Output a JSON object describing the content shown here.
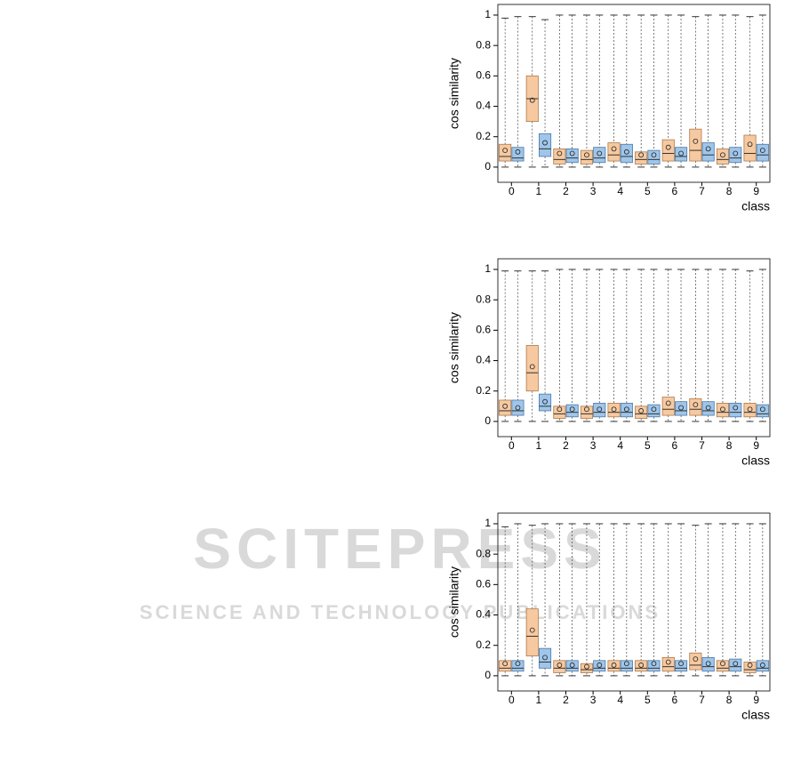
{
  "watermark": {
    "title": "SCITEPRESS",
    "subtitle": "SCIENCE AND TECHNOLOGY PUBLICATIONS"
  },
  "chart_data": [
    {
      "type": "box",
      "ylabel": "cos similarity",
      "xlabel": "class",
      "categories": [
        "0",
        "1",
        "2",
        "3",
        "4",
        "5",
        "6",
        "7",
        "8",
        "9"
      ],
      "ylim": [
        -0.1,
        1.07
      ],
      "yticks": [
        0,
        0.2,
        0.4,
        0.6,
        0.8,
        1
      ],
      "series": [
        {
          "color": "#f6c9a0",
          "stroke": "#b07a4a",
          "boxes": [
            {
              "min": 0,
              "q1": 0.04,
              "median": 0.07,
              "q3": 0.15,
              "max": 0.98,
              "mean": 0.11
            },
            {
              "min": 0,
              "q1": 0.3,
              "median": 0.45,
              "q3": 0.6,
              "max": 0.99,
              "mean": 0.44
            },
            {
              "min": 0,
              "q1": 0.02,
              "median": 0.05,
              "q3": 0.12,
              "max": 1,
              "mean": 0.09
            },
            {
              "min": 0,
              "q1": 0.02,
              "median": 0.05,
              "q3": 0.11,
              "max": 1,
              "mean": 0.08
            },
            {
              "min": 0,
              "q1": 0.04,
              "median": 0.08,
              "q3": 0.16,
              "max": 1,
              "mean": 0.12
            },
            {
              "min": 0,
              "q1": 0.02,
              "median": 0.05,
              "q3": 0.1,
              "max": 1,
              "mean": 0.08
            },
            {
              "min": 0,
              "q1": 0.04,
              "median": 0.09,
              "q3": 0.18,
              "max": 1,
              "mean": 0.13
            },
            {
              "min": 0,
              "q1": 0.04,
              "median": 0.11,
              "q3": 0.25,
              "max": 0.99,
              "mean": 0.17
            },
            {
              "min": 0,
              "q1": 0.02,
              "median": 0.05,
              "q3": 0.12,
              "max": 1,
              "mean": 0.08
            },
            {
              "min": 0,
              "q1": 0.04,
              "median": 0.09,
              "q3": 0.21,
              "max": 0.99,
              "mean": 0.15
            }
          ]
        },
        {
          "color": "#9fc6ea",
          "stroke": "#4a78a8",
          "boxes": [
            {
              "min": 0,
              "q1": 0.04,
              "median": 0.06,
              "q3": 0.13,
              "max": 0.99,
              "mean": 0.1
            },
            {
              "min": 0,
              "q1": 0.07,
              "median": 0.12,
              "q3": 0.22,
              "max": 0.97,
              "mean": 0.16
            },
            {
              "min": 0,
              "q1": 0.03,
              "median": 0.06,
              "q3": 0.12,
              "max": 1,
              "mean": 0.09
            },
            {
              "min": 0,
              "q1": 0.03,
              "median": 0.06,
              "q3": 0.13,
              "max": 1,
              "mean": 0.09
            },
            {
              "min": 0,
              "q1": 0.03,
              "median": 0.07,
              "q3": 0.15,
              "max": 1,
              "mean": 0.1
            },
            {
              "min": 0,
              "q1": 0.02,
              "median": 0.05,
              "q3": 0.11,
              "max": 1,
              "mean": 0.08
            },
            {
              "min": 0,
              "q1": 0.04,
              "median": 0.07,
              "q3": 0.13,
              "max": 1,
              "mean": 0.09
            },
            {
              "min": 0,
              "q1": 0.04,
              "median": 0.08,
              "q3": 0.16,
              "max": 1,
              "mean": 0.12
            },
            {
              "min": 0,
              "q1": 0.03,
              "median": 0.06,
              "q3": 0.13,
              "max": 1,
              "mean": 0.09
            },
            {
              "min": 0,
              "q1": 0.04,
              "median": 0.08,
              "q3": 0.15,
              "max": 1,
              "mean": 0.11
            }
          ]
        }
      ]
    },
    {
      "type": "box",
      "ylabel": "cos similarity",
      "xlabel": "class",
      "categories": [
        "0",
        "1",
        "2",
        "3",
        "4",
        "5",
        "6",
        "7",
        "8",
        "9"
      ],
      "ylim": [
        -0.1,
        1.07
      ],
      "yticks": [
        0,
        0.2,
        0.4,
        0.6,
        0.8,
        1
      ],
      "series": [
        {
          "color": "#f6c9a0",
          "stroke": "#b07a4a",
          "boxes": [
            {
              "min": 0,
              "q1": 0.04,
              "median": 0.07,
              "q3": 0.14,
              "max": 0.99,
              "mean": 0.1
            },
            {
              "min": 0,
              "q1": 0.2,
              "median": 0.32,
              "q3": 0.5,
              "max": 0.99,
              "mean": 0.36
            },
            {
              "min": 0,
              "q1": 0.02,
              "median": 0.05,
              "q3": 0.1,
              "max": 1,
              "mean": 0.08
            },
            {
              "min": 0,
              "q1": 0.02,
              "median": 0.05,
              "q3": 0.1,
              "max": 1,
              "mean": 0.08
            },
            {
              "min": 0,
              "q1": 0.03,
              "median": 0.06,
              "q3": 0.12,
              "max": 1,
              "mean": 0.08
            },
            {
              "min": 0,
              "q1": 0.02,
              "median": 0.05,
              "q3": 0.1,
              "max": 1,
              "mean": 0.07
            },
            {
              "min": 0,
              "q1": 0.04,
              "median": 0.08,
              "q3": 0.16,
              "max": 1,
              "mean": 0.12
            },
            {
              "min": 0,
              "q1": 0.04,
              "median": 0.08,
              "q3": 0.15,
              "max": 1,
              "mean": 0.11
            },
            {
              "min": 0,
              "q1": 0.03,
              "median": 0.06,
              "q3": 0.12,
              "max": 1,
              "mean": 0.08
            },
            {
              "min": 0,
              "q1": 0.03,
              "median": 0.06,
              "q3": 0.12,
              "max": 0.99,
              "mean": 0.08
            }
          ]
        },
        {
          "color": "#9fc6ea",
          "stroke": "#4a78a8",
          "boxes": [
            {
              "min": 0,
              "q1": 0.04,
              "median": 0.07,
              "q3": 0.14,
              "max": 0.99,
              "mean": 0.09
            },
            {
              "min": 0,
              "q1": 0.07,
              "median": 0.1,
              "q3": 0.18,
              "max": 0.99,
              "mean": 0.13
            },
            {
              "min": 0,
              "q1": 0.03,
              "median": 0.06,
              "q3": 0.11,
              "max": 1,
              "mean": 0.08
            },
            {
              "min": 0,
              "q1": 0.03,
              "median": 0.06,
              "q3": 0.12,
              "max": 1,
              "mean": 0.08
            },
            {
              "min": 0,
              "q1": 0.03,
              "median": 0.06,
              "q3": 0.12,
              "max": 1,
              "mean": 0.08
            },
            {
              "min": 0,
              "q1": 0.03,
              "median": 0.05,
              "q3": 0.11,
              "max": 1,
              "mean": 0.08
            },
            {
              "min": 0,
              "q1": 0.04,
              "median": 0.07,
              "q3": 0.13,
              "max": 1,
              "mean": 0.09
            },
            {
              "min": 0,
              "q1": 0.04,
              "median": 0.07,
              "q3": 0.13,
              "max": 1,
              "mean": 0.09
            },
            {
              "min": 0,
              "q1": 0.03,
              "median": 0.06,
              "q3": 0.12,
              "max": 1,
              "mean": 0.09
            },
            {
              "min": 0,
              "q1": 0.03,
              "median": 0.05,
              "q3": 0.11,
              "max": 1,
              "mean": 0.08
            }
          ]
        }
      ]
    },
    {
      "type": "box",
      "ylabel": "cos similarity",
      "xlabel": "class",
      "categories": [
        "0",
        "1",
        "2",
        "3",
        "4",
        "5",
        "6",
        "7",
        "8",
        "9"
      ],
      "ylim": [
        -0.1,
        1.07
      ],
      "yticks": [
        0,
        0.2,
        0.4,
        0.6,
        0.8,
        1
      ],
      "series": [
        {
          "color": "#f6c9a0",
          "stroke": "#b07a4a",
          "boxes": [
            {
              "min": 0,
              "q1": 0.03,
              "median": 0.05,
              "q3": 0.1,
              "max": 0.98,
              "mean": 0.08
            },
            {
              "min": 0,
              "q1": 0.13,
              "median": 0.26,
              "q3": 0.44,
              "max": 0.99,
              "mean": 0.3
            },
            {
              "min": 0,
              "q1": 0.02,
              "median": 0.05,
              "q3": 0.1,
              "max": 1,
              "mean": 0.07
            },
            {
              "min": 0,
              "q1": 0.02,
              "median": 0.04,
              "q3": 0.08,
              "max": 1,
              "mean": 0.06
            },
            {
              "min": 0,
              "q1": 0.03,
              "median": 0.05,
              "q3": 0.1,
              "max": 1,
              "mean": 0.07
            },
            {
              "min": 0,
              "q1": 0.03,
              "median": 0.05,
              "q3": 0.1,
              "max": 1,
              "mean": 0.07
            },
            {
              "min": 0,
              "q1": 0.03,
              "median": 0.06,
              "q3": 0.12,
              "max": 1,
              "mean": 0.09
            },
            {
              "min": 0,
              "q1": 0.04,
              "median": 0.07,
              "q3": 0.15,
              "max": 0.99,
              "mean": 0.11
            },
            {
              "min": 0,
              "q1": 0.03,
              "median": 0.05,
              "q3": 0.1,
              "max": 1,
              "mean": 0.08
            },
            {
              "min": 0,
              "q1": 0.02,
              "median": 0.04,
              "q3": 0.09,
              "max": 1,
              "mean": 0.07
            }
          ]
        },
        {
          "color": "#9fc6ea",
          "stroke": "#4a78a8",
          "boxes": [
            {
              "min": 0,
              "q1": 0.03,
              "median": 0.05,
              "q3": 0.1,
              "max": 1,
              "mean": 0.08
            },
            {
              "min": 0,
              "q1": 0.05,
              "median": 0.09,
              "q3": 0.18,
              "max": 1,
              "mean": 0.12
            },
            {
              "min": 0,
              "q1": 0.03,
              "median": 0.05,
              "q3": 0.1,
              "max": 1,
              "mean": 0.07
            },
            {
              "min": 0,
              "q1": 0.03,
              "median": 0.05,
              "q3": 0.1,
              "max": 1,
              "mean": 0.07
            },
            {
              "min": 0,
              "q1": 0.03,
              "median": 0.05,
              "q3": 0.1,
              "max": 1,
              "mean": 0.08
            },
            {
              "min": 0,
              "q1": 0.03,
              "median": 0.05,
              "q3": 0.1,
              "max": 1,
              "mean": 0.08
            },
            {
              "min": 0,
              "q1": 0.03,
              "median": 0.05,
              "q3": 0.1,
              "max": 1,
              "mean": 0.08
            },
            {
              "min": 0,
              "q1": 0.03,
              "median": 0.06,
              "q3": 0.12,
              "max": 1,
              "mean": 0.08
            },
            {
              "min": 0,
              "q1": 0.03,
              "median": 0.06,
              "q3": 0.11,
              "max": 1,
              "mean": 0.08
            },
            {
              "min": 0,
              "q1": 0.03,
              "median": 0.05,
              "q3": 0.1,
              "max": 1,
              "mean": 0.07
            }
          ]
        }
      ]
    }
  ]
}
